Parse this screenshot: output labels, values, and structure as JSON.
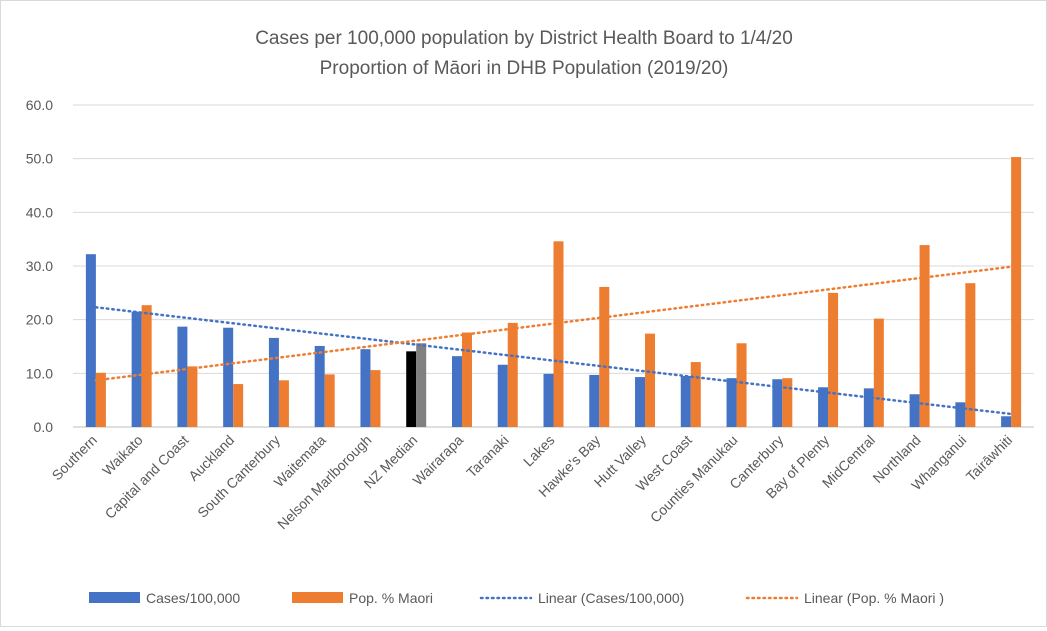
{
  "chart_data": {
    "type": "bar",
    "title": "Cases per 100,000 population by District Health Board to 1/4/20",
    "subtitle": "Proportion of Māori in DHB Population (2019/20)",
    "categories": [
      "Southern",
      "Waikato",
      "Capital and Coast",
      "Auckland",
      "South Canterbury",
      "Waitemata",
      "Nelson Marlborough",
      "NZ Median",
      "Wairarapa",
      "Taranaki",
      "Lakes",
      "Hawke's Bay",
      "Hutt Valley",
      "West Coast",
      "Counties Manukau",
      "Canterbury",
      "Bay of Plenty",
      "MidCentral",
      "Northland",
      "Whanganui",
      "Tairāwhiti"
    ],
    "series": [
      {
        "name": "Cases/100,000",
        "color": "#4472c4",
        "highlight_colors": {
          "NZ Median": "#000000"
        },
        "values": [
          32.2,
          21.5,
          18.7,
          18.5,
          16.6,
          15.1,
          14.5,
          14.1,
          13.2,
          11.6,
          9.9,
          9.7,
          9.3,
          9.5,
          9.1,
          8.9,
          7.4,
          7.2,
          6.1,
          4.6,
          2.0
        ]
      },
      {
        "name": "Pop. % Maori",
        "color": "#ed7d31",
        "highlight_colors": {
          "NZ Median": "#808080"
        },
        "values": [
          10.1,
          22.7,
          11.3,
          8.0,
          8.7,
          9.8,
          10.6,
          15.6,
          17.6,
          19.4,
          34.6,
          26.1,
          17.4,
          12.1,
          15.6,
          9.1,
          25.0,
          20.2,
          33.9,
          26.8,
          50.3
        ]
      }
    ],
    "trendlines": [
      {
        "name": "Linear (Cases/100,000)",
        "color": "#4472c4",
        "type": "linear",
        "series": 0
      },
      {
        "name": "Linear (Pop. % Maori )",
        "color": "#ed7d31",
        "type": "linear",
        "series": 1
      }
    ],
    "y_ticks": [
      "0.0",
      "10.0",
      "20.0",
      "30.0",
      "40.0",
      "50.0",
      "60.0"
    ],
    "ylim": [
      0,
      60
    ],
    "grid": true,
    "legend_position": "bottom"
  }
}
